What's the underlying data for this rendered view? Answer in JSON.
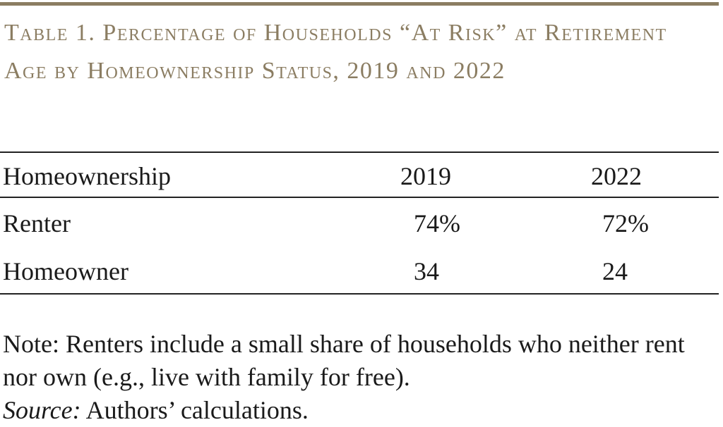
{
  "table": {
    "title": "Table 1. Percentage of Households “At Risk” at Retirement Age by Homeownership Status, 2019 and 2022",
    "columns": [
      "Homeownership",
      "2019",
      "2022"
    ],
    "rows": [
      {
        "label": "Renter",
        "v2019": "74%",
        "v2022": "72%"
      },
      {
        "label": "Homeowner",
        "v2019": "34",
        "v2022": "24"
      }
    ]
  },
  "notes": {
    "note": "Note: Renters include a small share of households who neither rent nor own (e.g., live with family for free).",
    "source_label": "Source:",
    "source_text": " Authors’ calculations."
  },
  "colors": {
    "accent": "#8b7d62",
    "text": "#1a1a1a",
    "rule": "#222222"
  }
}
